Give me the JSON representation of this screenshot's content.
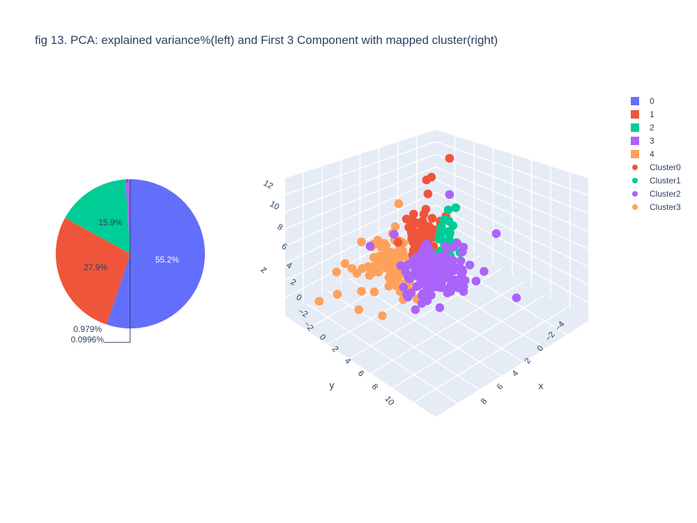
{
  "title": "fig 13. PCA: explained variance%(left) and First 3 Component with mapped cluster(right)",
  "colors": {
    "c0": "#636efa",
    "c1": "#ef553b",
    "c2": "#00cc96",
    "c3": "#ab63fa",
    "c4": "#ffa15a"
  },
  "chart_data": [
    {
      "type": "pie",
      "labels": [
        "0",
        "1",
        "2",
        "3",
        "4"
      ],
      "values": [
        55.2,
        27.9,
        15.9,
        0.979,
        0.0996
      ],
      "text_labels": [
        "55.2%",
        "27.9%",
        "15.9%",
        "0.979%",
        "0.0996%"
      ],
      "colors": [
        "#636efa",
        "#ef553b",
        "#00cc96",
        "#ab63fa",
        "#ffa15a"
      ]
    },
    {
      "type": "scatter3d",
      "xlabel": "x",
      "ylabel": "y",
      "zlabel": "z",
      "x_ticks": [
        "−4",
        "−2",
        "0",
        "2",
        "4",
        "6",
        "8"
      ],
      "y_ticks": [
        "−2",
        "0",
        "2",
        "4",
        "6",
        "8",
        "10"
      ],
      "z_ticks": [
        "−2",
        "0",
        "2",
        "4",
        "6",
        "8",
        "10",
        "12"
      ],
      "series": [
        {
          "name": "Cluster0",
          "color": "#ef553b"
        },
        {
          "name": "Cluster1",
          "color": "#00cc96"
        },
        {
          "name": "Cluster2",
          "color": "#ab63fa"
        },
        {
          "name": "Cluster3",
          "color": "#ffa15a"
        }
      ]
    }
  ],
  "legend": [
    {
      "label": "0",
      "shape": "square",
      "color": "#636efa"
    },
    {
      "label": "1",
      "shape": "square",
      "color": "#ef553b"
    },
    {
      "label": "2",
      "shape": "square",
      "color": "#00cc96"
    },
    {
      "label": "3",
      "shape": "square",
      "color": "#ab63fa"
    },
    {
      "label": "4",
      "shape": "square",
      "color": "#ffa15a"
    },
    {
      "label": "Cluster0",
      "shape": "dot",
      "color": "#ef553b"
    },
    {
      "label": "Cluster1",
      "shape": "dot",
      "color": "#00cc96"
    },
    {
      "label": "Cluster2",
      "shape": "dot",
      "color": "#ab63fa"
    },
    {
      "label": "Cluster3",
      "shape": "dot",
      "color": "#ffa15a"
    }
  ]
}
